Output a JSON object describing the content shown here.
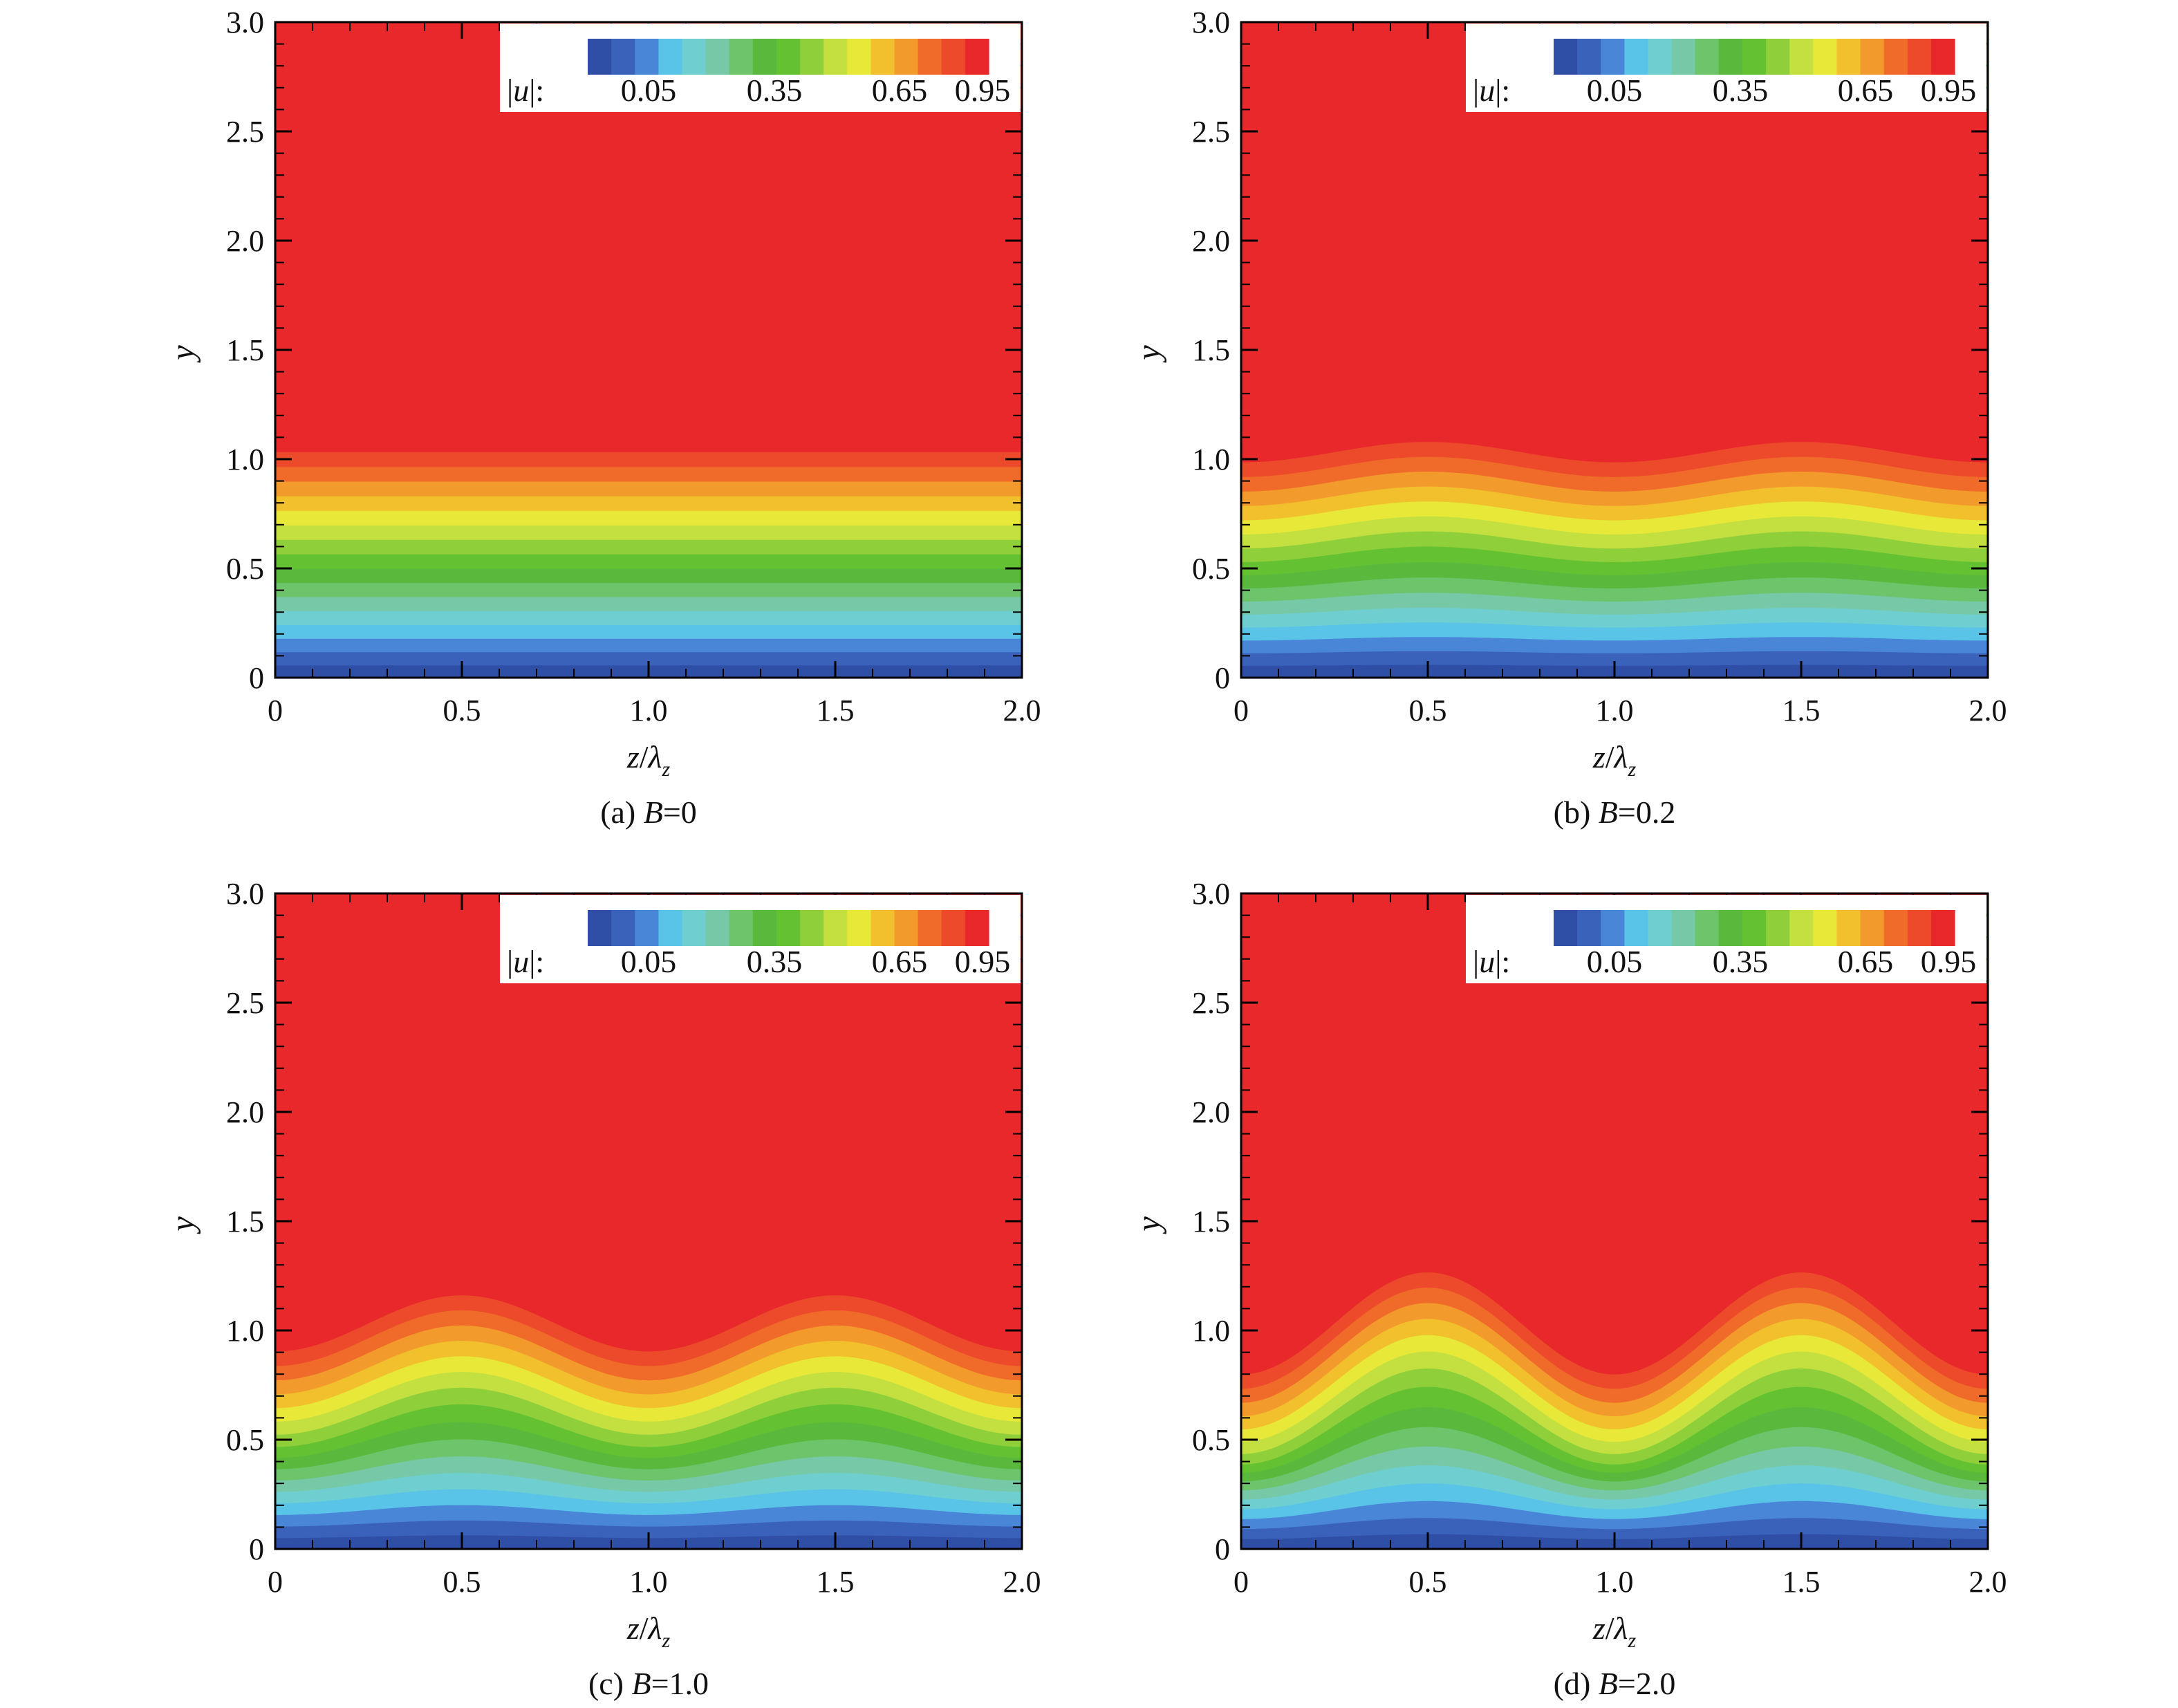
{
  "colors": {
    "levels": [
      "#2f4fa6",
      "#3a62ba",
      "#4a86d8",
      "#59c3e8",
      "#6fcfd0",
      "#76c8a6",
      "#6dc46a",
      "#5ab93c",
      "#63c132",
      "#8ecf3a",
      "#c3e040",
      "#e8e838",
      "#f2c02c",
      "#f39a2c",
      "#f06a2a",
      "#ec4a2a",
      "#e8282a"
    ],
    "frame": "#000000",
    "legend_bg": "#ffffff"
  },
  "chart_data": [
    {
      "panel_id": "a",
      "type": "heatmap",
      "caption_prefix": "(a) ",
      "caption_var": "B",
      "caption_rest": "=0",
      "B": 0,
      "xlabel": "z/λz",
      "xlabel_num": "z",
      "xlabel_den": "λ",
      "xlabel_sub": "z",
      "ylabel": "y",
      "xlim": [
        0,
        2.0
      ],
      "ylim": [
        0,
        3.0
      ],
      "xticks": [
        "0",
        "0.5",
        "1.0",
        "1.5",
        "2.0"
      ],
      "yticks": [
        "0",
        "0.5",
        "1.0",
        "1.5",
        "2.0",
        "2.5",
        "3.0"
      ],
      "legend_label": "|u|:",
      "legend_var": "u",
      "legend_ticks": [
        "0.05",
        "0.35",
        "0.65",
        "0.95"
      ],
      "field": {
        "variable": "|u|",
        "min": 0.05,
        "max": 0.95,
        "base_thickness": 1.0,
        "modulation_amplitude": 0.0,
        "period_z_over_lambda": 1.0
      }
    },
    {
      "panel_id": "b",
      "type": "heatmap",
      "caption_prefix": "(b) ",
      "caption_var": "B",
      "caption_rest": "=0.2",
      "B": 0.2,
      "xlabel": "z/λz",
      "xlabel_num": "z",
      "xlabel_den": "λ",
      "xlabel_sub": "z",
      "ylabel": "y",
      "xlim": [
        0,
        2.0
      ],
      "ylim": [
        0,
        3.0
      ],
      "xticks": [
        "0",
        "0.5",
        "1.0",
        "1.5",
        "2.0"
      ],
      "yticks": [
        "0",
        "0.5",
        "1.0",
        "1.5",
        "2.0",
        "2.5",
        "3.0"
      ],
      "legend_label": "|u|:",
      "legend_var": "u",
      "legend_ticks": [
        "0.05",
        "0.35",
        "0.65",
        "0.95"
      ],
      "field": {
        "variable": "|u|",
        "min": 0.05,
        "max": 0.95,
        "base_thickness": 1.0,
        "modulation_amplitude": 0.04,
        "period_z_over_lambda": 1.0
      }
    },
    {
      "panel_id": "c",
      "type": "heatmap",
      "caption_prefix": "(c) ",
      "caption_var": "B",
      "caption_rest": "=1.0",
      "B": 1.0,
      "xlabel": "z/λz",
      "xlabel_num": "z",
      "xlabel_den": "λ",
      "xlabel_sub": "z",
      "ylabel": "y",
      "xlim": [
        0,
        2.0
      ],
      "ylim": [
        0,
        3.0
      ],
      "xticks": [
        "0",
        "0.5",
        "1.0",
        "1.5",
        "2.0"
      ],
      "yticks": [
        "0",
        "0.5",
        "1.0",
        "1.5",
        "2.0",
        "2.5",
        "3.0"
      ],
      "legend_label": "|u|:",
      "legend_var": "u",
      "legend_ticks": [
        "0.05",
        "0.35",
        "0.65",
        "0.95"
      ],
      "field": {
        "variable": "|u|",
        "min": 0.05,
        "max": 0.95,
        "base_thickness": 1.0,
        "modulation_amplitude": 0.11,
        "period_z_over_lambda": 1.0
      }
    },
    {
      "panel_id": "d",
      "type": "heatmap",
      "caption_prefix": "(d) ",
      "caption_var": "B",
      "caption_rest": "=2.0",
      "B": 2.0,
      "xlabel": "z/λz",
      "xlabel_num": "z",
      "xlabel_den": "λ",
      "xlabel_sub": "z",
      "ylabel": "y",
      "xlim": [
        0,
        2.0
      ],
      "ylim": [
        0,
        3.0
      ],
      "xticks": [
        "0",
        "0.5",
        "1.0",
        "1.5",
        "2.0"
      ],
      "yticks": [
        "0",
        "0.5",
        "1.0",
        "1.5",
        "2.0",
        "2.5",
        "3.0"
      ],
      "legend_label": "|u|:",
      "legend_var": "u",
      "legend_ticks": [
        "0.05",
        "0.35",
        "0.65",
        "0.95"
      ],
      "field": {
        "variable": "|u|",
        "min": 0.05,
        "max": 0.95,
        "base_thickness": 1.0,
        "modulation_amplitude": 0.2,
        "period_z_over_lambda": 1.0
      }
    }
  ]
}
